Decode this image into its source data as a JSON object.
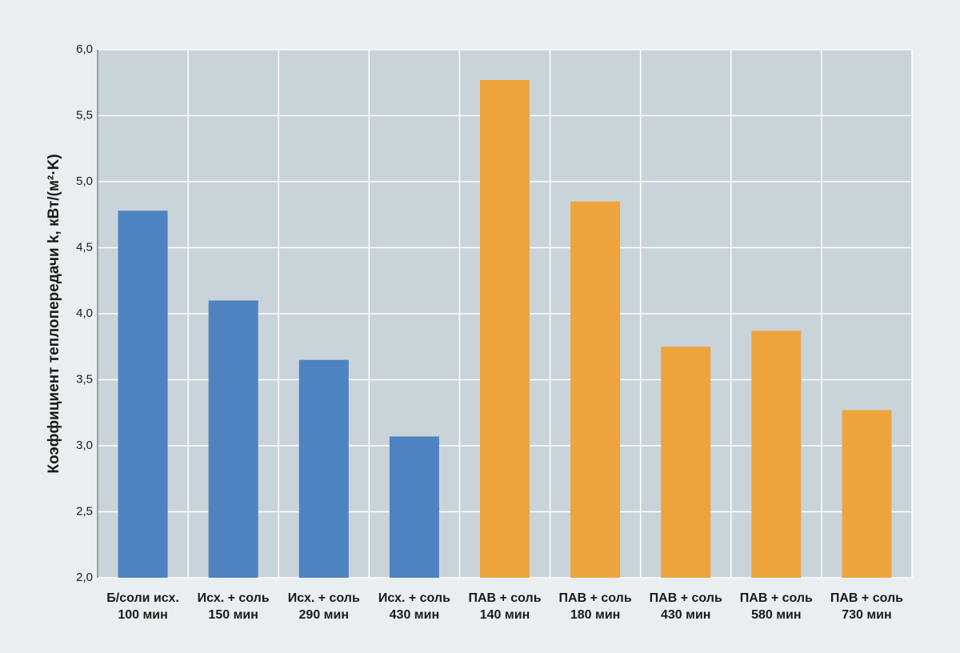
{
  "chart_data": {
    "type": "bar",
    "y_label": "Коэффициент теплопередачи k, кВт/(м²·K)",
    "categories": [
      [
        "Б/соли исх.",
        "100 мин"
      ],
      [
        "Исх. + соль",
        "150 мин"
      ],
      [
        "Исх. + соль",
        "290 мин"
      ],
      [
        "Исх. + соль",
        "430 мин"
      ],
      [
        "ПАВ + соль",
        "140 мин"
      ],
      [
        "ПАВ + соль",
        "180 мин"
      ],
      [
        "ПАВ + соль",
        "430 мин"
      ],
      [
        "ПАВ + соль",
        "580 мин"
      ],
      [
        "ПАВ + соль",
        "730 мин"
      ]
    ],
    "values": [
      4.78,
      4.1,
      3.65,
      3.07,
      5.77,
      4.85,
      3.75,
      3.87,
      3.27
    ],
    "colors": [
      "#4f82c0",
      "#4f82c0",
      "#4f82c0",
      "#4f82c0",
      "#eea43c",
      "#eea43c",
      "#eea43c",
      "#eea43c",
      "#eea43c"
    ],
    "ylim": [
      2,
      6
    ],
    "yticks": [
      {
        "value": 2,
        "label": "2,0"
      },
      {
        "value": 2.5,
        "label": "2,5"
      },
      {
        "value": 3,
        "label": "3,0"
      },
      {
        "value": 3.5,
        "label": "3,5"
      },
      {
        "value": 4,
        "label": "4,0"
      },
      {
        "value": 4.5,
        "label": "4,5"
      },
      {
        "value": 5,
        "label": "5,0"
      },
      {
        "value": 5.5,
        "label": "5,5"
      },
      {
        "value": 6,
        "label": "6,0"
      }
    ],
    "grid": true
  }
}
